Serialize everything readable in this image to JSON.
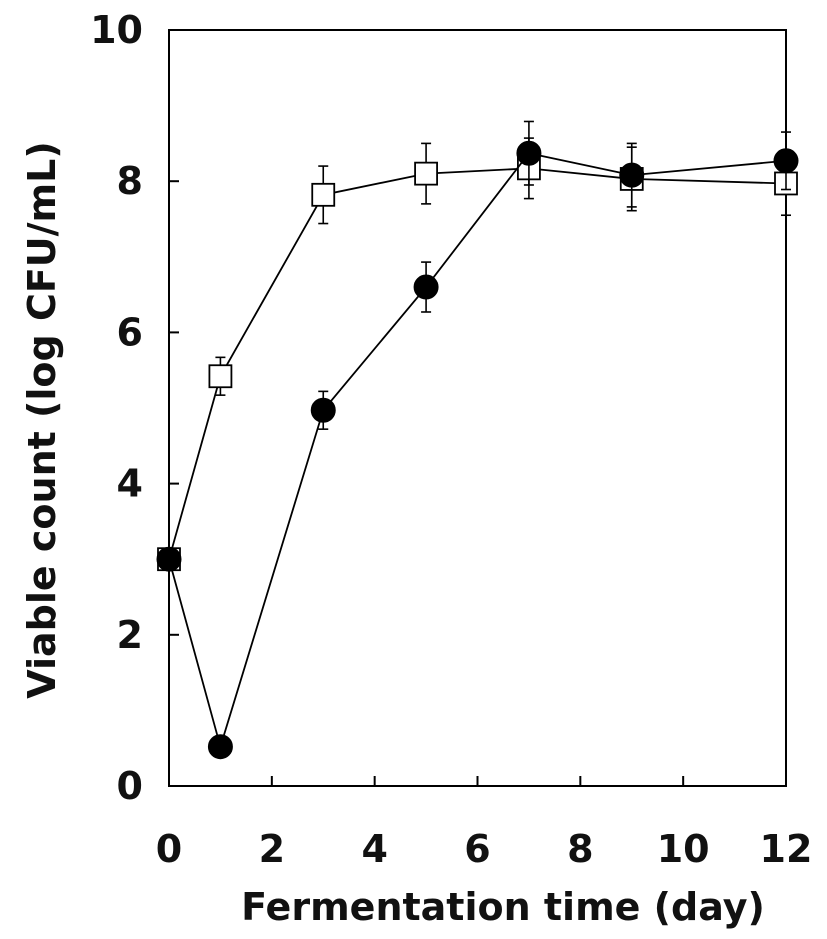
{
  "chart_data": {
    "type": "line",
    "title": "",
    "xlabel": "Fermentation time (day)",
    "ylabel": "Viable count (log CFU/mL)",
    "xlim": [
      0,
      12
    ],
    "ylim": [
      0,
      10
    ],
    "xticks": [
      0,
      2,
      4,
      6,
      8,
      10,
      12
    ],
    "yticks": [
      0,
      2,
      4,
      6,
      8,
      10
    ],
    "grid": false,
    "legend": "none",
    "series": [
      {
        "marker": "open-square",
        "color": "#000000",
        "x": [
          0,
          1,
          3,
          5,
          7,
          9,
          12
        ],
        "y": [
          3.0,
          5.42,
          7.82,
          8.1,
          8.17,
          8.03,
          7.97
        ],
        "err": [
          0.0,
          0.25,
          0.38,
          0.4,
          0.4,
          0.42,
          0.42
        ]
      },
      {
        "marker": "filled-circle",
        "color": "#000000",
        "x": [
          0,
          1,
          3,
          5,
          7,
          9,
          12
        ],
        "y": [
          3.0,
          0.52,
          4.97,
          6.6,
          8.37,
          8.08,
          8.27
        ],
        "err": [
          0.0,
          0.0,
          0.25,
          0.33,
          0.42,
          0.42,
          0.38
        ]
      }
    ]
  }
}
